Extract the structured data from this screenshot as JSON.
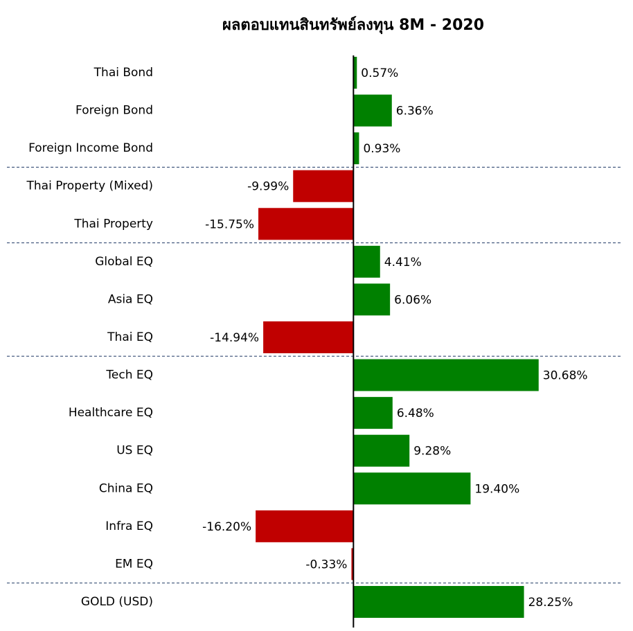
{
  "chart_data": {
    "type": "bar",
    "orientation": "horizontal",
    "title": "ผลตอบแทนสินทรัพย์ลงทุน 8M - 2020",
    "categories": [
      "Thai Bond",
      "Foreign Bond",
      "Foreign Income Bond",
      "Thai Property (Mixed)",
      "Thai Property",
      "Global EQ",
      "Asia EQ",
      "Thai EQ",
      "Tech EQ",
      "Healthcare EQ",
      "US EQ",
      "China EQ",
      "Infra EQ",
      "EM EQ",
      "GOLD (USD)"
    ],
    "values": [
      0.57,
      6.36,
      0.93,
      -9.99,
      -15.75,
      4.41,
      6.06,
      -14.94,
      30.68,
      6.48,
      9.28,
      19.4,
      -16.2,
      -0.33,
      28.25
    ],
    "value_labels": [
      "0.57%",
      "6.36%",
      "0.93%",
      "-9.99%",
      "-15.75%",
      "4.41%",
      "6.06%",
      "-14.94%",
      "30.68%",
      "6.48%",
      "9.28%",
      "19.40%",
      "-16.20%",
      "-0.33%",
      "28.25%"
    ],
    "positive_color": "#008000",
    "negative_color": "#c00000",
    "xlim": [
      -20,
      40
    ]
  }
}
